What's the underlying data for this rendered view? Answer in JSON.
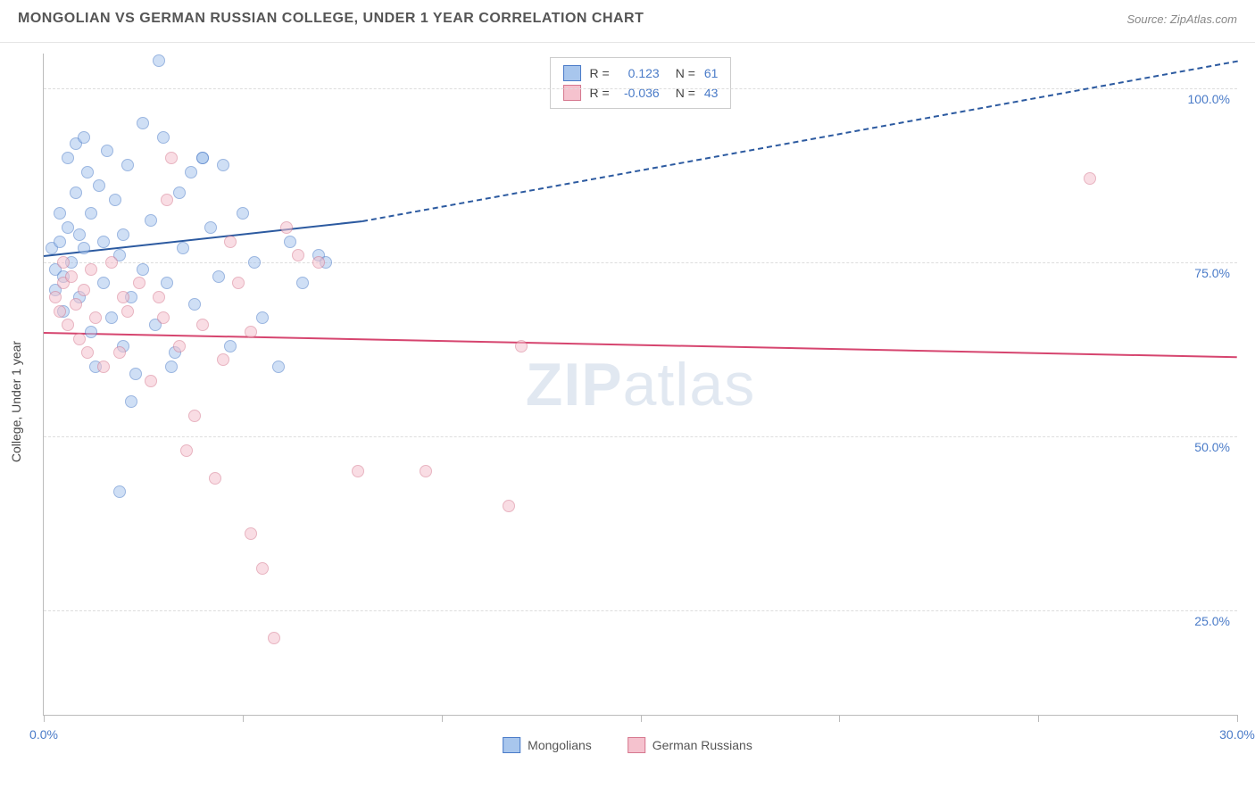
{
  "title": "MONGOLIAN VS GERMAN RUSSIAN COLLEGE, UNDER 1 YEAR CORRELATION CHART",
  "source": "Source: ZipAtlas.com",
  "y_axis_title": "College, Under 1 year",
  "watermark_z": "ZIP",
  "watermark_rest": "atlas",
  "chart": {
    "type": "scatter",
    "xlim": [
      0,
      30
    ],
    "ylim": [
      10,
      105
    ],
    "x_ticks": [
      0,
      5,
      10,
      15,
      20,
      25,
      30
    ],
    "x_tick_labels": {
      "0": "0.0%",
      "30": "30.0%"
    },
    "y_gridlines": [
      25,
      50,
      75,
      100
    ],
    "y_labels": {
      "25": "25.0%",
      "50": "50.0%",
      "75": "75.0%",
      "100": "100.0%"
    },
    "grid_color": "#dddddd",
    "axis_color": "#bbbbbb",
    "background_color": "#ffffff",
    "label_color": "#4a7bc8",
    "label_fontsize": 14,
    "title_color": "#555555",
    "title_fontsize": 16,
    "point_radius": 7,
    "point_opacity": 0.55,
    "series": [
      {
        "name": "Mongolians",
        "color_fill": "#a8c6ed",
        "color_stroke": "#4a7bc8",
        "r_value": "0.123",
        "n_value": "61",
        "trend": {
          "x1": 0,
          "y1": 76,
          "x2_solid": 8,
          "y2_solid": 81,
          "x2": 30,
          "y2": 104,
          "color": "#2c5aa0",
          "width": 2.5
        },
        "points": [
          [
            0.2,
            77
          ],
          [
            0.3,
            71
          ],
          [
            0.3,
            74
          ],
          [
            0.4,
            78
          ],
          [
            0.5,
            68
          ],
          [
            0.5,
            73
          ],
          [
            0.6,
            90
          ],
          [
            0.6,
            80
          ],
          [
            0.7,
            75
          ],
          [
            0.8,
            92
          ],
          [
            0.8,
            85
          ],
          [
            0.9,
            70
          ],
          [
            1.0,
            93
          ],
          [
            1.0,
            77
          ],
          [
            1.1,
            88
          ],
          [
            1.2,
            65
          ],
          [
            1.2,
            82
          ],
          [
            1.3,
            60
          ],
          [
            1.4,
            86
          ],
          [
            1.5,
            72
          ],
          [
            1.5,
            78
          ],
          [
            1.6,
            91
          ],
          [
            1.7,
            67
          ],
          [
            1.8,
            84
          ],
          [
            1.9,
            76
          ],
          [
            2.0,
            63
          ],
          [
            2.0,
            79
          ],
          [
            2.1,
            89
          ],
          [
            2.2,
            70
          ],
          [
            2.3,
            59
          ],
          [
            2.5,
            95
          ],
          [
            2.5,
            74
          ],
          [
            2.7,
            81
          ],
          [
            2.8,
            66
          ],
          [
            2.9,
            104
          ],
          [
            3.0,
            93
          ],
          [
            3.1,
            72
          ],
          [
            3.2,
            60
          ],
          [
            3.4,
            85
          ],
          [
            3.5,
            77
          ],
          [
            3.7,
            88
          ],
          [
            3.8,
            69
          ],
          [
            4.0,
            90
          ],
          [
            4.0,
            90
          ],
          [
            4.2,
            80
          ],
          [
            4.4,
            73
          ],
          [
            4.5,
            89
          ],
          [
            4.7,
            63
          ],
          [
            5.0,
            82
          ],
          [
            5.3,
            75
          ],
          [
            5.5,
            67
          ],
          [
            5.9,
            60
          ],
          [
            6.2,
            78
          ],
          [
            6.5,
            72
          ],
          [
            6.9,
            76
          ],
          [
            7.1,
            75
          ],
          [
            1.9,
            42
          ],
          [
            2.2,
            55
          ],
          [
            3.3,
            62
          ],
          [
            0.4,
            82
          ],
          [
            0.9,
            79
          ]
        ]
      },
      {
        "name": "German Russians",
        "color_fill": "#f5c2ce",
        "color_stroke": "#d6788f",
        "r_value": "-0.036",
        "n_value": "43",
        "trend": {
          "x1": 0,
          "y1": 65,
          "x2_solid": 30,
          "y2_solid": 61.5,
          "x2": 30,
          "y2": 61.5,
          "color": "#d6456f",
          "width": 2
        },
        "points": [
          [
            0.3,
            70
          ],
          [
            0.4,
            68
          ],
          [
            0.5,
            72
          ],
          [
            0.6,
            66
          ],
          [
            0.7,
            73
          ],
          [
            0.8,
            69
          ],
          [
            0.9,
            64
          ],
          [
            1.0,
            71
          ],
          [
            1.2,
            74
          ],
          [
            1.3,
            67
          ],
          [
            1.5,
            60
          ],
          [
            1.7,
            75
          ],
          [
            1.9,
            62
          ],
          [
            2.1,
            68
          ],
          [
            2.4,
            72
          ],
          [
            2.7,
            58
          ],
          [
            2.9,
            70
          ],
          [
            3.1,
            84
          ],
          [
            3.2,
            90
          ],
          [
            3.4,
            63
          ],
          [
            3.6,
            48
          ],
          [
            3.8,
            53
          ],
          [
            4.0,
            66
          ],
          [
            4.3,
            44
          ],
          [
            4.5,
            61
          ],
          [
            4.7,
            78
          ],
          [
            4.9,
            72
          ],
          [
            5.2,
            36
          ],
          [
            5.2,
            65
          ],
          [
            5.5,
            31
          ],
          [
            5.8,
            21
          ],
          [
            6.1,
            80
          ],
          [
            6.4,
            76
          ],
          [
            6.9,
            75
          ],
          [
            7.9,
            45
          ],
          [
            9.6,
            45
          ],
          [
            11.7,
            40
          ],
          [
            12.0,
            63
          ],
          [
            26.3,
            87
          ],
          [
            2.0,
            70
          ],
          [
            1.1,
            62
          ],
          [
            0.5,
            75
          ],
          [
            3.0,
            67
          ]
        ]
      }
    ]
  },
  "bottom_legend": [
    {
      "label": "Mongolians",
      "fill": "#a8c6ed",
      "stroke": "#4a7bc8"
    },
    {
      "label": "German Russians",
      "fill": "#f5c2ce",
      "stroke": "#d6788f"
    }
  ],
  "legend_box": {
    "r_label": "R =",
    "n_label": "N ="
  }
}
